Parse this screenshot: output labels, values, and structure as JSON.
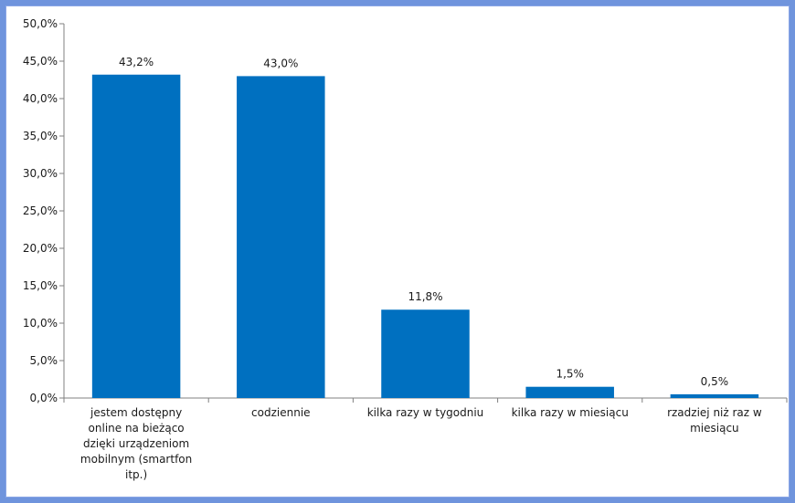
{
  "chart_data": {
    "type": "bar",
    "categories": [
      "jestem dostępny online na bieżąco dzięki urządzeniom mobilnym (smartfon itp.)",
      "codziennie",
      "kilka razy w tygodniu",
      "kilka razy w miesiącu",
      "rzadziej niż raz w miesiącu"
    ],
    "category_lines": [
      [
        "jestem dostępny",
        "online na bieżąco",
        "dzięki urządzeniom",
        "mobilnym (smartfon",
        "itp.)"
      ],
      [
        "codziennie"
      ],
      [
        "kilka razy w tygodniu"
      ],
      [
        "kilka razy w miesiącu"
      ],
      [
        "rzadziej niż raz w",
        "miesiącu"
      ]
    ],
    "values": [
      43.2,
      43.0,
      11.8,
      1.5,
      0.5
    ],
    "data_labels": [
      "43,2%",
      "43,0%",
      "11,8%",
      "1,5%",
      "0,5%"
    ],
    "ylim": [
      0,
      50
    ],
    "yticks": [
      0,
      5,
      10,
      15,
      20,
      25,
      30,
      35,
      40,
      45,
      50
    ],
    "ytick_labels": [
      "0,0%",
      "5,0%",
      "10,0%",
      "15,0%",
      "20,0%",
      "25,0%",
      "30,0%",
      "35,0%",
      "40,0%",
      "45,0%",
      "50,0%"
    ],
    "title": "",
    "xlabel": "",
    "ylabel": "",
    "grid": false,
    "colors": {
      "bar": "#0070c0",
      "axis": "#808080",
      "frame_background": "#6f94dd"
    }
  }
}
